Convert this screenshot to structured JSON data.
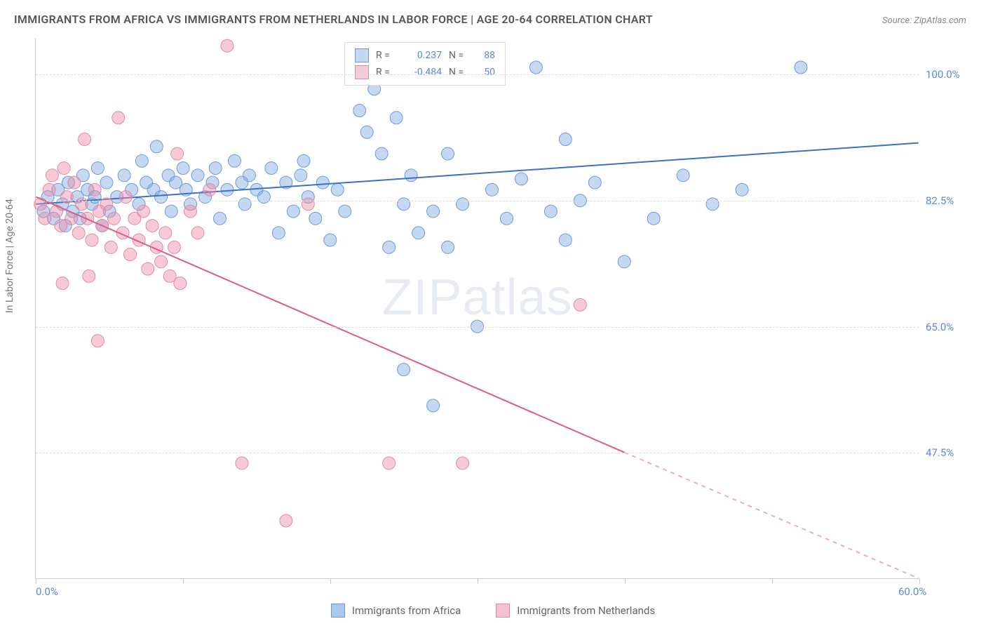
{
  "title": "IMMIGRANTS FROM AFRICA VS IMMIGRANTS FROM NETHERLANDS IN LABOR FORCE | AGE 20-64 CORRELATION CHART",
  "source": "Source: ZipAtlas.com",
  "watermark": "ZIPatlas",
  "ylabel": "In Labor Force | Age 20-64",
  "chart": {
    "type": "scatter",
    "xlim": [
      0,
      60
    ],
    "ylim": [
      30,
      105
    ],
    "yticks": [
      47.5,
      65.0,
      82.5,
      100.0
    ],
    "ytick_labels": [
      "47.5%",
      "65.0%",
      "82.5%",
      "100.0%"
    ],
    "xticks": [
      0,
      10,
      20,
      30,
      40,
      50,
      60
    ],
    "xtick_labels": {
      "0": "0.0%",
      "60": "60.0%"
    },
    "background_color": "#ffffff",
    "grid_color": "#dddddd",
    "series": [
      {
        "name": "Immigrants from Africa",
        "color_fill": "rgba(126,169,226,0.45)",
        "color_stroke": "#6d9adb",
        "marker_radius": 9,
        "R": "0.237",
        "N": "88",
        "trend": {
          "x1": 0,
          "y1": 82.0,
          "x2": 60,
          "y2": 90.5,
          "color": "#3b72c4",
          "width": 2
        },
        "points": [
          [
            0.5,
            81
          ],
          [
            0.8,
            83
          ],
          [
            1.2,
            80
          ],
          [
            1.5,
            84
          ],
          [
            1.8,
            82
          ],
          [
            2.0,
            79
          ],
          [
            2.2,
            85
          ],
          [
            2.5,
            81
          ],
          [
            2.8,
            83
          ],
          [
            3.0,
            80
          ],
          [
            3.2,
            86
          ],
          [
            3.5,
            84
          ],
          [
            3.8,
            82
          ],
          [
            4.0,
            83
          ],
          [
            4.2,
            87
          ],
          [
            4.5,
            79
          ],
          [
            4.8,
            85
          ],
          [
            5.0,
            81
          ],
          [
            5.5,
            83
          ],
          [
            6.0,
            86
          ],
          [
            6.5,
            84
          ],
          [
            7.0,
            82
          ],
          [
            7.2,
            88
          ],
          [
            7.5,
            85
          ],
          [
            8.0,
            84
          ],
          [
            8.2,
            90
          ],
          [
            8.5,
            83
          ],
          [
            9.0,
            86
          ],
          [
            9.2,
            81
          ],
          [
            9.5,
            85
          ],
          [
            10.0,
            87
          ],
          [
            10.2,
            84
          ],
          [
            10.5,
            82
          ],
          [
            11.0,
            86
          ],
          [
            11.5,
            83
          ],
          [
            12.0,
            85
          ],
          [
            12.2,
            87
          ],
          [
            12.5,
            80
          ],
          [
            13.0,
            84
          ],
          [
            13.5,
            88
          ],
          [
            14.0,
            85
          ],
          [
            14.2,
            82
          ],
          [
            14.5,
            86
          ],
          [
            15.0,
            84
          ],
          [
            15.5,
            83
          ],
          [
            16.0,
            87
          ],
          [
            16.5,
            78
          ],
          [
            17.0,
            85
          ],
          [
            17.5,
            81
          ],
          [
            18.0,
            86
          ],
          [
            18.2,
            88
          ],
          [
            18.5,
            83
          ],
          [
            19.0,
            80
          ],
          [
            19.5,
            85
          ],
          [
            20.0,
            77
          ],
          [
            20.5,
            84
          ],
          [
            21.0,
            81
          ],
          [
            22.0,
            95
          ],
          [
            22.5,
            92
          ],
          [
            23.0,
            98
          ],
          [
            23.5,
            89
          ],
          [
            24.0,
            76
          ],
          [
            24.5,
            94
          ],
          [
            25.0,
            82
          ],
          [
            25.5,
            86
          ],
          [
            26.0,
            78
          ],
          [
            27.0,
            81
          ],
          [
            28.0,
            76
          ],
          [
            29.0,
            82
          ],
          [
            30.0,
            65
          ],
          [
            31.0,
            84
          ],
          [
            32.0,
            80
          ],
          [
            33.0,
            85.5
          ],
          [
            34.0,
            101
          ],
          [
            35.0,
            81
          ],
          [
            36.0,
            77
          ],
          [
            37.0,
            82.5
          ],
          [
            38.0,
            85
          ],
          [
            40.0,
            74
          ],
          [
            42.0,
            80
          ],
          [
            25.0,
            59
          ],
          [
            27.0,
            54
          ],
          [
            52.0,
            101
          ],
          [
            44.0,
            86
          ],
          [
            46.0,
            82
          ],
          [
            48.0,
            84
          ],
          [
            36.0,
            91
          ],
          [
            28.0,
            89
          ]
        ]
      },
      {
        "name": "Immigrants from Netherlands",
        "color_fill": "rgba(235,140,165,0.45)",
        "color_stroke": "#e38aa5",
        "marker_radius": 9,
        "R": "-0.484",
        "N": "50",
        "trend": {
          "x1": 0,
          "y1": 83.0,
          "x2": 40,
          "y2": 47.5,
          "extrap_x2": 60,
          "extrap_y2": 30.0,
          "color": "#e05a8a",
          "width": 2
        },
        "points": [
          [
            0.3,
            82
          ],
          [
            0.6,
            80
          ],
          [
            0.9,
            84
          ],
          [
            1.1,
            86
          ],
          [
            1.4,
            81
          ],
          [
            1.7,
            79
          ],
          [
            1.9,
            87
          ],
          [
            2.1,
            83
          ],
          [
            2.4,
            80
          ],
          [
            2.6,
            85
          ],
          [
            2.9,
            78
          ],
          [
            3.1,
            82
          ],
          [
            3.3,
            91
          ],
          [
            3.5,
            80
          ],
          [
            3.8,
            77
          ],
          [
            4.0,
            84
          ],
          [
            4.3,
            81
          ],
          [
            4.5,
            79
          ],
          [
            4.8,
            82
          ],
          [
            5.1,
            76
          ],
          [
            5.3,
            80
          ],
          [
            5.6,
            94
          ],
          [
            5.9,
            78
          ],
          [
            6.1,
            83
          ],
          [
            6.4,
            75
          ],
          [
            6.7,
            80
          ],
          [
            7.0,
            77
          ],
          [
            7.3,
            81
          ],
          [
            7.6,
            73
          ],
          [
            7.9,
            79
          ],
          [
            8.2,
            76
          ],
          [
            8.5,
            74
          ],
          [
            8.8,
            78
          ],
          [
            9.1,
            72
          ],
          [
            9.4,
            76
          ],
          [
            9.6,
            89
          ],
          [
            9.8,
            71
          ],
          [
            4.2,
            63
          ],
          [
            1.8,
            71
          ],
          [
            10.5,
            81
          ],
          [
            11.0,
            78
          ],
          [
            11.8,
            84
          ],
          [
            13.0,
            104
          ],
          [
            14.0,
            46
          ],
          [
            17.0,
            38
          ],
          [
            18.5,
            82
          ],
          [
            24.0,
            46
          ],
          [
            29.0,
            46
          ],
          [
            37.0,
            68
          ],
          [
            3.6,
            72
          ]
        ]
      }
    ],
    "legend_stats_labels": {
      "R": "R =",
      "N": "N ="
    }
  },
  "bottom_legend": [
    {
      "label": "Immigrants from Africa",
      "fill": "#aac7ec",
      "stroke": "#6d9adb"
    },
    {
      "label": "Immigrants from Netherlands",
      "fill": "#f3c1d0",
      "stroke": "#e38aa5"
    }
  ]
}
